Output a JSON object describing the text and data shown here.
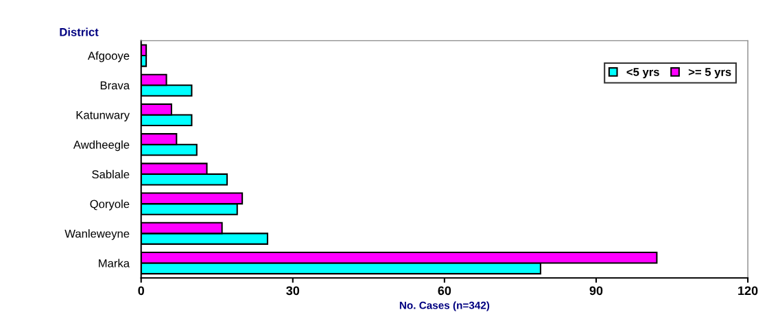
{
  "chart_data": {
    "type": "bar",
    "orientation": "horizontal",
    "ylabel": "District",
    "xlabel": "No. Cases (n=342)",
    "categories": [
      "Afgooye",
      "Brava",
      "Katunwary",
      "Awdheegle",
      "Sablale",
      "Qoryole",
      "Wanleweyne",
      "Marka"
    ],
    "series": [
      {
        "name": "<5 yrs",
        "color": "#00ffff",
        "values": [
          1,
          10,
          10,
          11,
          17,
          19,
          25,
          79
        ]
      },
      {
        "name": ">= 5 yrs",
        "color": "#ff00ff",
        "values": [
          1,
          5,
          6,
          7,
          13,
          20,
          16,
          102
        ]
      }
    ],
    "xlim": [
      0,
      120
    ],
    "xticks": [
      0,
      30,
      60,
      90,
      120
    ],
    "grid": false,
    "legend": "top right"
  }
}
